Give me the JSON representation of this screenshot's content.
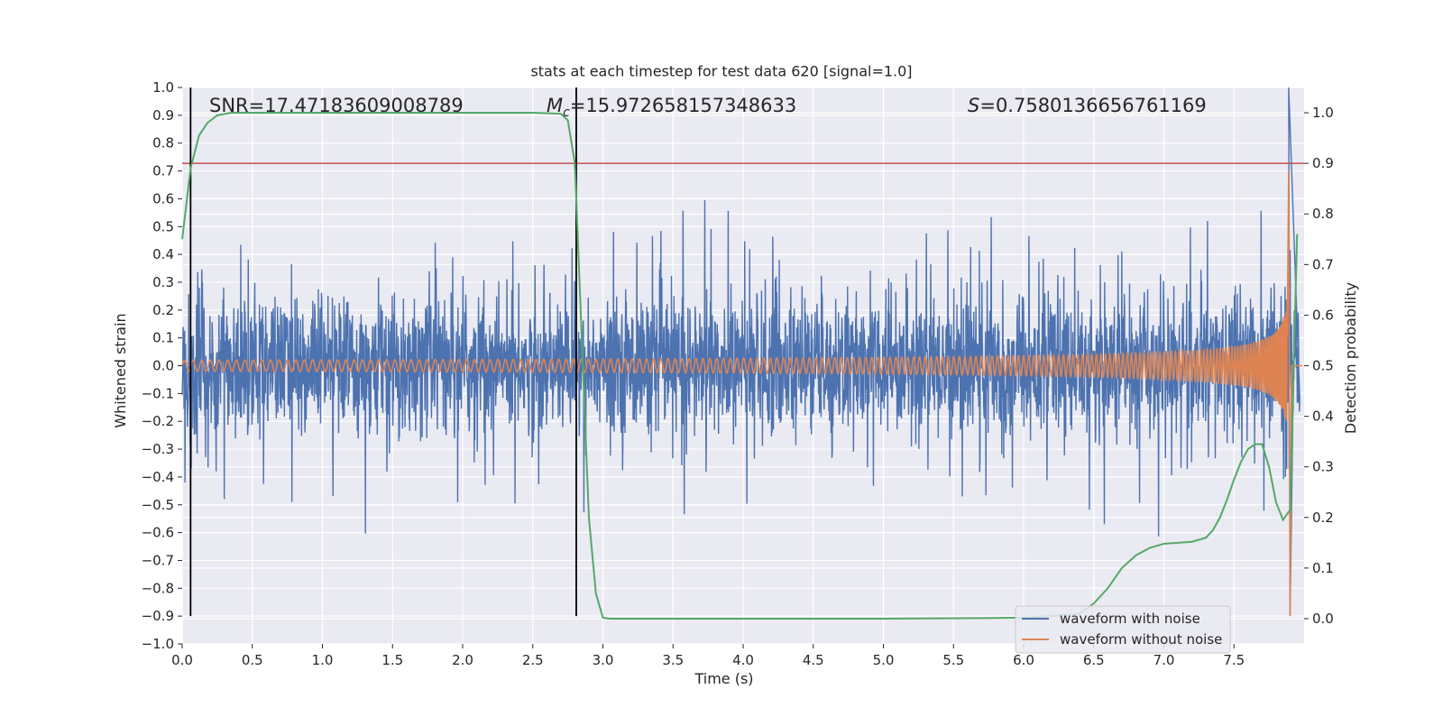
{
  "chart_data": {
    "type": "line",
    "title": "stats at each timestep for test data 620 [signal=1.0]",
    "xlabel": "Time (s)",
    "ylabel": "Whitened strain",
    "y2label": "Detection probability",
    "xlim": [
      0.0,
      8.0
    ],
    "ylim": [
      -1.0,
      1.0
    ],
    "y2lim": [
      -0.05,
      1.05
    ],
    "x_ticks": [
      0.0,
      0.5,
      1.0,
      1.5,
      2.0,
      2.5,
      3.0,
      3.5,
      4.0,
      4.5,
      5.0,
      5.5,
      6.0,
      6.5,
      7.0,
      7.5
    ],
    "x_tick_labels": [
      "0.0",
      "0.5",
      "1.0",
      "1.5",
      "2.0",
      "2.5",
      "3.0",
      "3.5",
      "4.0",
      "4.5",
      "5.0",
      "5.5",
      "6.0",
      "6.5",
      "7.0",
      "7.5"
    ],
    "y_ticks": [
      1.0,
      0.9,
      0.8,
      0.7,
      0.6,
      0.5,
      0.4,
      0.3,
      0.2,
      0.1,
      0.0,
      -0.1,
      -0.2,
      -0.3,
      -0.4,
      -0.5,
      -0.6,
      -0.7,
      -0.8,
      -0.9,
      -1.0
    ],
    "y_tick_labels": [
      "1.0",
      "0.9",
      "0.8",
      "0.7",
      "0.6",
      "0.5",
      "0.4",
      "0.3",
      "0.2",
      "0.1",
      "0.0",
      "−0.1",
      "−0.2",
      "−0.3",
      "−0.4",
      "−0.5",
      "−0.6",
      "−0.7",
      "−0.8",
      "−0.9",
      "−1.0"
    ],
    "y2_ticks": [
      1.0,
      0.9,
      0.8,
      0.7,
      0.6,
      0.5,
      0.4,
      0.3,
      0.2,
      0.1,
      0.0
    ],
    "y2_tick_labels": [
      "1.0",
      "0.9",
      "0.8",
      "0.7",
      "0.6",
      "0.5",
      "0.4",
      "0.3",
      "0.2",
      "0.1",
      "0.0"
    ],
    "annotations": {
      "snr": "SNR=17.47183609008789",
      "mc_symbol": "M",
      "mc_subscript": "c",
      "mc_value": "=15.972658157348633",
      "s_symbol": "S",
      "s_value": "=0.7580136656761169"
    },
    "legend_position": "lower right",
    "grid": true,
    "threshold_line": {
      "axis": "right",
      "y": 0.9,
      "color": "#c44e52"
    },
    "vertical_markers": [
      {
        "x": 0.06,
        "y_range": [
          -0.9,
          1.0
        ],
        "color": "#000000"
      },
      {
        "x": 2.81,
        "y_range": [
          -0.9,
          1.0
        ],
        "color": "#000000"
      }
    ],
    "series": [
      {
        "name": "waveform with noise",
        "color": "#4c72b0",
        "axis": "left",
        "description_values": {
          "typical_amplitude": 0.25,
          "peak_positive": 1.0,
          "peak_negative": -0.9,
          "peak_time": 7.9
        }
      },
      {
        "name": "waveform without noise",
        "color": "#dd8452",
        "axis": "left",
        "description_values": {
          "start_amplitude": 0.02,
          "end_amplitude": 0.7,
          "merger_time": 7.9,
          "min_value": -0.9
        }
      },
      {
        "name": "detection probability",
        "color": "#55a868",
        "axis": "right",
        "x": [
          0.0,
          0.06,
          0.12,
          0.18,
          0.25,
          0.35,
          0.5,
          1.0,
          2.0,
          2.5,
          2.7,
          2.75,
          2.8,
          2.85,
          2.9,
          2.95,
          3.0,
          3.05,
          3.2,
          3.5,
          4.0,
          5.0,
          5.7,
          6.0,
          6.2,
          6.4,
          6.5,
          6.6,
          6.7,
          6.8,
          6.9,
          7.0,
          7.1,
          7.2,
          7.3,
          7.35,
          7.4,
          7.45,
          7.5,
          7.55,
          7.6,
          7.65,
          7.7,
          7.75,
          7.8,
          7.85,
          7.9,
          7.95
        ],
        "y": [
          0.75,
          0.89,
          0.955,
          0.98,
          0.995,
          1.0,
          1.0,
          1.0,
          1.0,
          1.0,
          0.998,
          0.985,
          0.9,
          0.55,
          0.2,
          0.05,
          0.002,
          0.0,
          0.0,
          0.0,
          0.0,
          0.0,
          0.001,
          0.002,
          0.005,
          0.01,
          0.03,
          0.06,
          0.1,
          0.125,
          0.14,
          0.148,
          0.15,
          0.152,
          0.16,
          0.175,
          0.2,
          0.235,
          0.275,
          0.31,
          0.335,
          0.345,
          0.345,
          0.3,
          0.23,
          0.195,
          0.215,
          0.76
        ]
      }
    ]
  }
}
